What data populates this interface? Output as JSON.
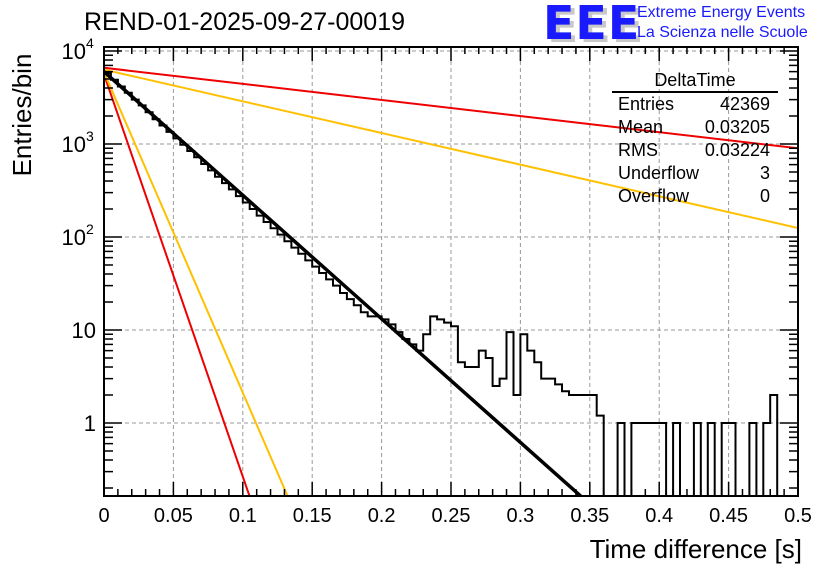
{
  "header": {
    "title": "REND-01-2025-09-27-00019",
    "logo_mark": "EEE",
    "logo_line1": "Extreme Energy Events",
    "logo_line2": "La Scienza nelle Scuole"
  },
  "stats_box": {
    "title": "DeltaTime",
    "rows": [
      {
        "label": "Entries",
        "value": "42369"
      },
      {
        "label": "Mean",
        "value": "0.03205"
      },
      {
        "label": "RMS",
        "value": "0.03224"
      },
      {
        "label": "Underflow",
        "value": "3"
      },
      {
        "label": "Overflow",
        "value": "0"
      }
    ]
  },
  "chart_data": {
    "type": "histogram",
    "title": "REND-01-2025-09-27-00019",
    "xlabel": "Time difference [s]",
    "ylabel": "Entries/bin",
    "xlim": [
      0,
      0.5
    ],
    "ylim": [
      0.165,
      10000
    ],
    "yscale": "log",
    "grid": true,
    "x_ticks": [
      "0",
      "0.05",
      "0.1",
      "0.15",
      "0.2",
      "0.25",
      "0.3",
      "0.35",
      "0.4",
      "0.45",
      "0.5"
    ],
    "x_tick_values": [
      0,
      0.05,
      0.1,
      0.15,
      0.2,
      0.25,
      0.3,
      0.35,
      0.4,
      0.45,
      0.5
    ],
    "y_ticks": [
      {
        "value": 10000,
        "base": "10",
        "exp": "4"
      },
      {
        "value": 1000,
        "base": "10",
        "exp": "3"
      },
      {
        "value": 100,
        "base": "10",
        "exp": "2"
      },
      {
        "value": 10,
        "base": "10",
        "exp": ""
      },
      {
        "value": 1,
        "base": "1",
        "exp": ""
      }
    ],
    "bin_width": 0.005,
    "histogram": {
      "name": "DeltaTime",
      "color": "#000000",
      "values": [
        5800,
        4900,
        4150,
        3550,
        3000,
        2600,
        2200,
        1850,
        1580,
        1350,
        1150,
        980,
        840,
        720,
        610,
        520,
        445,
        380,
        325,
        275,
        235,
        200,
        170,
        145,
        124,
        106,
        90,
        77,
        66,
        56,
        48,
        41,
        35,
        30,
        25,
        21.5,
        18.5,
        15.5,
        14,
        14,
        13,
        11.5,
        9.5,
        8,
        7,
        6,
        9,
        14,
        13,
        12,
        11,
        4.5,
        4,
        4,
        6,
        5,
        2.5,
        3,
        9.5,
        2,
        9,
        6,
        4.5,
        3,
        3,
        2.6,
        2.2,
        2,
        2,
        2,
        2,
        1.2,
        0,
        0,
        1,
        0,
        1,
        1,
        1,
        1,
        1,
        0,
        1,
        0,
        0,
        1,
        0,
        1,
        0,
        1,
        1,
        0,
        0,
        1,
        0,
        1,
        2,
        0,
        0,
        0
      ]
    },
    "series": [
      {
        "name": "fit",
        "color": "#000000",
        "y0": 6000,
        "slope_per_s": -30.6
      },
      {
        "name": "red-slow",
        "color": "#ee0000",
        "y0": 6600,
        "y_at_0_5": 900
      },
      {
        "name": "yellow-slow",
        "color": "#ffc000",
        "y0": 6300,
        "y_at_0_5": 125
      },
      {
        "name": "red-fast",
        "color": "#ee0000",
        "y0": 5600,
        "x_at_ymin": 0.107
      },
      {
        "name": "yellow-fast",
        "color": "#ffc000",
        "y0": 5900,
        "x_at_ymin": 0.135
      }
    ]
  },
  "axes": {
    "xlabel": "Time difference [s]",
    "ylabel": "Entries/bin"
  }
}
